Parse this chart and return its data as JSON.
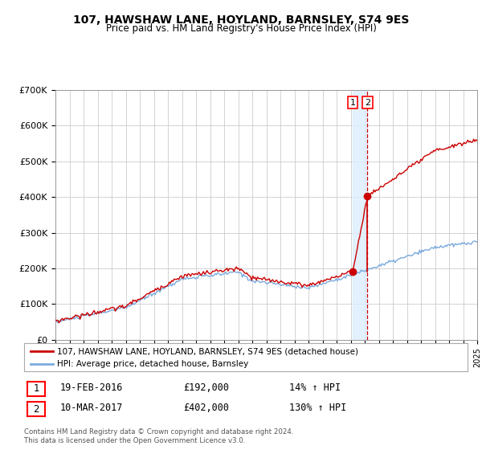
{
  "title": "107, HAWSHAW LANE, HOYLAND, BARNSLEY, S74 9ES",
  "subtitle": "Price paid vs. HM Land Registry's House Price Index (HPI)",
  "legend_line1": "107, HAWSHAW LANE, HOYLAND, BARNSLEY, S74 9ES (detached house)",
  "legend_line2": "HPI: Average price, detached house, Barnsley",
  "transaction1_date": "19-FEB-2016",
  "transaction1_price": 192000,
  "transaction1_hpi": "14%",
  "transaction2_date": "10-MAR-2017",
  "transaction2_price": 402000,
  "transaction2_hpi": "130%",
  "footer": "Contains HM Land Registry data © Crown copyright and database right 2024.\nThis data is licensed under the Open Government Licence v3.0.",
  "hpi_color": "#7aaadd",
  "price_color": "#cc0000",
  "ylim": [
    0,
    700000
  ],
  "yticks": [
    0,
    100000,
    200000,
    300000,
    400000,
    500000,
    600000,
    700000
  ],
  "ytick_labels": [
    "£0",
    "£100K",
    "£200K",
    "£300K",
    "£400K",
    "£500K",
    "£600K",
    "£700K"
  ],
  "background_color": "#ffffff",
  "grid_color": "#cccccc",
  "start_year": 1995,
  "end_year": 2025
}
